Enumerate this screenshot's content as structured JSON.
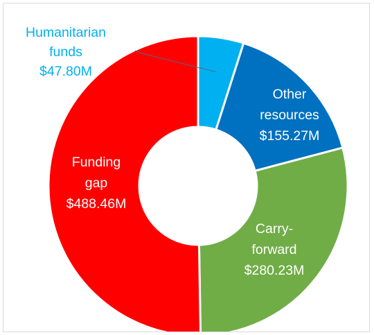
{
  "chart_data": {
    "type": "donut",
    "slices": [
      {
        "name": "Humanitarian funds",
        "label_lines": [
          "Humanitarian",
          "funds",
          "$47.80M"
        ],
        "value": 47.8,
        "color": "#00b0f0",
        "label_color": "#00b0f0"
      },
      {
        "name": "Other resources",
        "label_lines": [
          "Other",
          "resources",
          "$155.27M"
        ],
        "value": 155.27,
        "color": "#0070c0",
        "label_color": "#ffffff"
      },
      {
        "name": "Carry-forward",
        "label_lines": [
          "Carry-",
          "forward",
          "$280.23M"
        ],
        "value": 280.23,
        "color": "#70ad47",
        "label_color": "#ffffff"
      },
      {
        "name": "Funding gap",
        "label_lines": [
          "Funding",
          "gap",
          "$488.46M"
        ],
        "value": 488.46,
        "color": "#ff0000",
        "label_color": "#ffffff"
      }
    ],
    "slice_border_color": "#ffffff",
    "legend": "none"
  }
}
